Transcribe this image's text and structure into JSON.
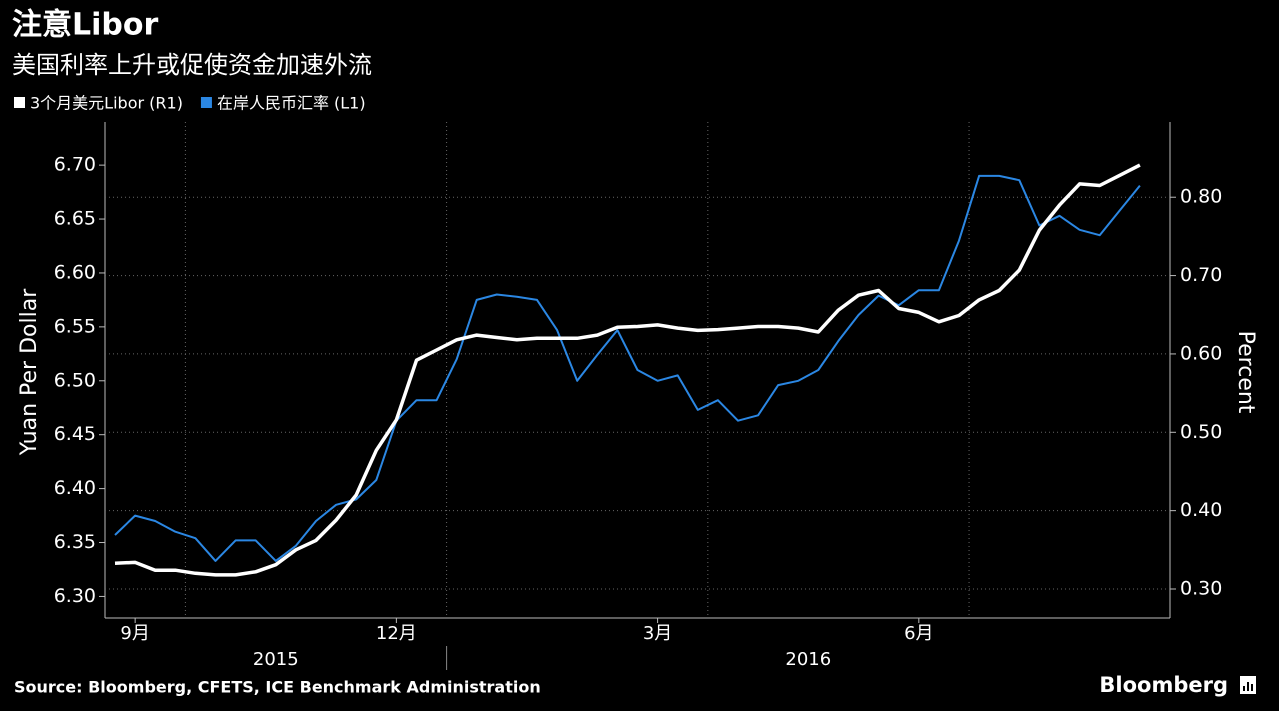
{
  "chart_data": {
    "type": "line",
    "title": "注意Libor",
    "subtitle": "美国利率上升或促使资金加速外流",
    "ylabel": "Yuan Per Dollar",
    "y2label": "Percent",
    "source": "Source: Bloomberg, CFETS, ICE Benchmark Administration",
    "logo": "Bloomberg",
    "categories": [
      null,
      "9月",
      null,
      null,
      null,
      null,
      null,
      null,
      null,
      null,
      null,
      null,
      null,
      null,
      "12月",
      null,
      null,
      null,
      null,
      null,
      null,
      null,
      null,
      null,
      null,
      null,
      null,
      "3月",
      null,
      null,
      null,
      null,
      null,
      null,
      null,
      null,
      null,
      null,
      null,
      null,
      "6月",
      null,
      null,
      null,
      null,
      null,
      null,
      null,
      null,
      null,
      null,
      null,
      null
    ],
    "year_labels": [
      "2015",
      "2016"
    ],
    "series": [
      {
        "name": "3个月美元Libor (R1)",
        "color": "#ffffff",
        "axis": "y2",
        "values": [
          0.333,
          0.334,
          0.324,
          0.324,
          0.32,
          0.318,
          0.318,
          0.322,
          0.331,
          0.35,
          0.362,
          0.388,
          0.42,
          0.477,
          0.516,
          0.592,
          0.605,
          0.618,
          0.624,
          0.621,
          0.618,
          0.62,
          0.62,
          0.62,
          0.624,
          0.634,
          0.635,
          0.637,
          0.633,
          0.63,
          0.631,
          0.633,
          0.635,
          0.635,
          0.633,
          0.628,
          0.656,
          0.675,
          0.681,
          0.658,
          0.653,
          0.641,
          0.649,
          0.669,
          0.681,
          0.707,
          0.758,
          0.79,
          0.817,
          0.815,
          0.828,
          0.841,
          null
        ]
      },
      {
        "name": "在岸人民币汇率 (L1)",
        "color": "#2b87e3",
        "values": [
          6.357,
          6.375,
          6.37,
          6.36,
          6.354,
          6.333,
          6.352,
          6.352,
          6.333,
          6.347,
          6.37,
          6.385,
          6.39,
          6.408,
          6.463,
          6.482,
          6.482,
          6.52,
          6.575,
          6.58,
          6.578,
          6.575,
          6.547,
          6.5,
          6.524,
          6.547,
          6.51,
          6.5,
          6.505,
          6.473,
          6.482,
          6.463,
          6.468,
          6.496,
          6.5,
          6.51,
          6.537,
          6.561,
          6.579,
          6.57,
          6.584,
          6.584,
          6.63,
          6.69,
          6.69,
          6.686,
          6.644,
          6.653,
          6.64,
          6.635,
          6.658,
          6.681,
          null
        ]
      }
    ],
    "ylim": [
      6.28,
      6.74
    ],
    "yticks": [
      {
        "value": 6.3,
        "label": "6.30"
      },
      {
        "value": 6.35,
        "label": "6.35"
      },
      {
        "value": 6.4,
        "label": "6.40"
      },
      {
        "value": 6.45,
        "label": "6.45"
      },
      {
        "value": 6.5,
        "label": "6.50"
      },
      {
        "value": 6.55,
        "label": "6.55"
      },
      {
        "value": 6.6,
        "label": "6.60"
      },
      {
        "value": 6.65,
        "label": "6.65"
      },
      {
        "value": 6.7,
        "label": "6.70"
      }
    ],
    "y2lim": [
      0.263,
      0.896
    ],
    "y2ticks": [
      {
        "value": 0.3,
        "label": "0.30"
      },
      {
        "value": 0.4,
        "label": "0.40"
      },
      {
        "value": 0.5,
        "label": "0.50"
      },
      {
        "value": 0.6,
        "label": "0.60"
      },
      {
        "value": 0.7,
        "label": "0.70"
      },
      {
        "value": 0.8,
        "label": "0.80"
      }
    ],
    "grid": true
  }
}
